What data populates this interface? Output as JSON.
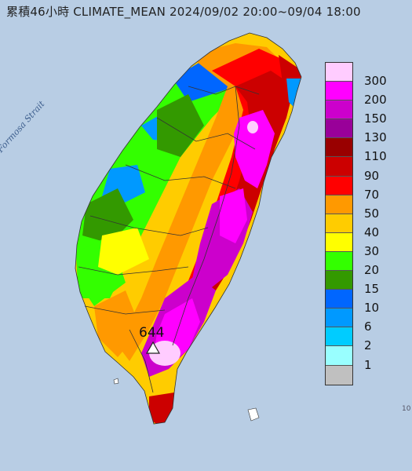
{
  "header": {
    "title": "累積46小時 CLIMATE_MEAN 2024/09/02 20:00~09/04 18:00"
  },
  "map": {
    "strait_label": "Formosa Strait",
    "max_marker_value": "644",
    "max_marker_icon": "triangle-marker-icon"
  },
  "legend": {
    "items": [
      {
        "label": "300",
        "color": "#ffccff"
      },
      {
        "label": "200",
        "color": "#ff00ff"
      },
      {
        "label": "150",
        "color": "#cc00cc"
      },
      {
        "label": "130",
        "color": "#990099"
      },
      {
        "label": "110",
        "color": "#990000"
      },
      {
        "label": "90",
        "color": "#cc0000"
      },
      {
        "label": "70",
        "color": "#ff0000"
      },
      {
        "label": "50",
        "color": "#ff9900"
      },
      {
        "label": "40",
        "color": "#ffcc00"
      },
      {
        "label": "30",
        "color": "#ffff00"
      },
      {
        "label": "20",
        "color": "#33ff00"
      },
      {
        "label": "15",
        "color": "#339900"
      },
      {
        "label": "10",
        "color": "#0066ff"
      },
      {
        "label": "6",
        "color": "#0099ff"
      },
      {
        "label": "2",
        "color": "#00ccff"
      },
      {
        "label": "1",
        "color": "#99ffff"
      },
      {
        "label": "",
        "color": "#c0c0c0"
      }
    ]
  }
}
